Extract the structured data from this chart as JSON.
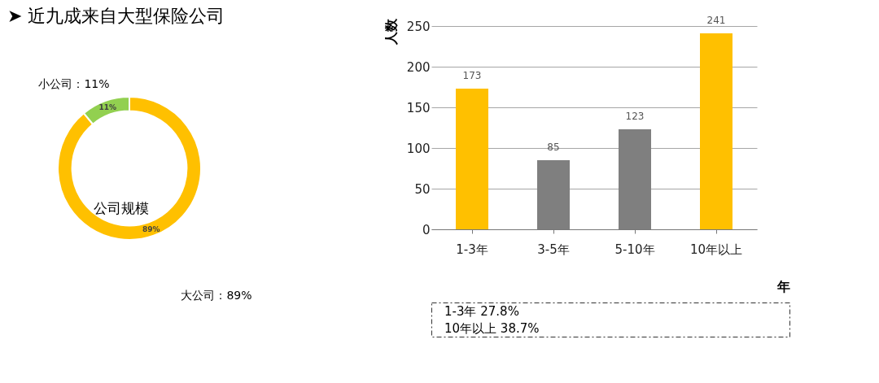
{
  "chart_data": [
    {
      "type": "donut",
      "title": "➤ 近九成来自大型保险公司",
      "categories": [
        null,
        null
      ],
      "values": [
        89,
        11
      ],
      "colors": [
        "#ffc000",
        "#92d050"
      ],
      "value_labels": [
        "89%",
        "11%"
      ],
      "annotations": [
        "小公司：11%",
        "公司规模",
        "大公司：89%"
      ]
    },
    {
      "type": "bar",
      "categories": [
        "1-3年",
        "3-5年",
        "5-10年",
        "10年以上"
      ],
      "values": [
        173,
        85,
        123,
        241
      ],
      "colors": [
        "#ffc000",
        "#7f7f7f",
        "#7f7f7f",
        "#ffc000"
      ],
      "ylim": [
        0,
        250
      ],
      "yticks": [
        0,
        50,
        100,
        150,
        200,
        250
      ],
      "ylabel": "人数",
      "xlabel": "年",
      "grid": "y",
      "data_labels": true,
      "annotations": [
        "1-3年      27.8%",
        "10年以上      38.7%"
      ]
    }
  ]
}
